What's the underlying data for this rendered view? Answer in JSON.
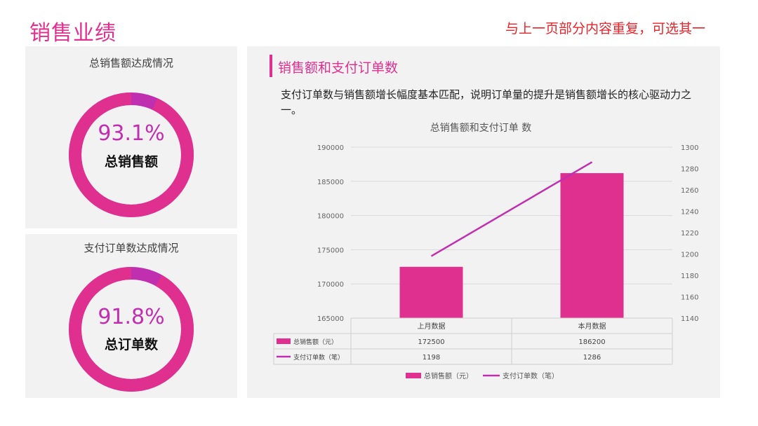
{
  "page": {
    "title": "销售业绩",
    "note": "与上一页部分内容重复，可选其一"
  },
  "colors": {
    "accent": "#e0308f",
    "highlight": "#c02fb0",
    "note": "#e8242a",
    "line": "#c02fb0"
  },
  "kpis": [
    {
      "title": "总销售额达成情况",
      "percent_text": "93.1%",
      "percent": 93.1,
      "label": "总销售额"
    },
    {
      "title": "支付订单数达成情况",
      "percent_text": "91.8%",
      "percent": 91.8,
      "label": "总订单数"
    }
  ],
  "main": {
    "title": "销售额和支付订单数",
    "description": "支付订单数与销售额增长幅度基本匹配，说明订单量的提升是销售额增长的核心驱动力之一。"
  },
  "chart_data": {
    "type": "bar",
    "title": "总销售额和支付订单 数",
    "categories": [
      "上月数据",
      "本月数据"
    ],
    "series": [
      {
        "name": "总销售额（元）",
        "type": "bar",
        "axis": "left",
        "values": [
          172500,
          186200
        ],
        "color": "#e0308f"
      },
      {
        "name": "支付订单数（笔）",
        "type": "line",
        "axis": "right",
        "values": [
          1198,
          1286
        ],
        "color": "#c02fb0"
      }
    ],
    "y_left": {
      "min": 165000,
      "max": 190000,
      "step": 5000,
      "ticks": [
        "190000",
        "185000",
        "180000",
        "175000",
        "170000",
        "165000"
      ]
    },
    "y_right": {
      "min": 1140,
      "max": 1300,
      "step": 20,
      "ticks": [
        "1300",
        "1280",
        "1260",
        "1240",
        "1220",
        "1200",
        "1180",
        "1160",
        "1140"
      ]
    },
    "grid": true,
    "legend_position": "bottom",
    "data_table": true
  }
}
